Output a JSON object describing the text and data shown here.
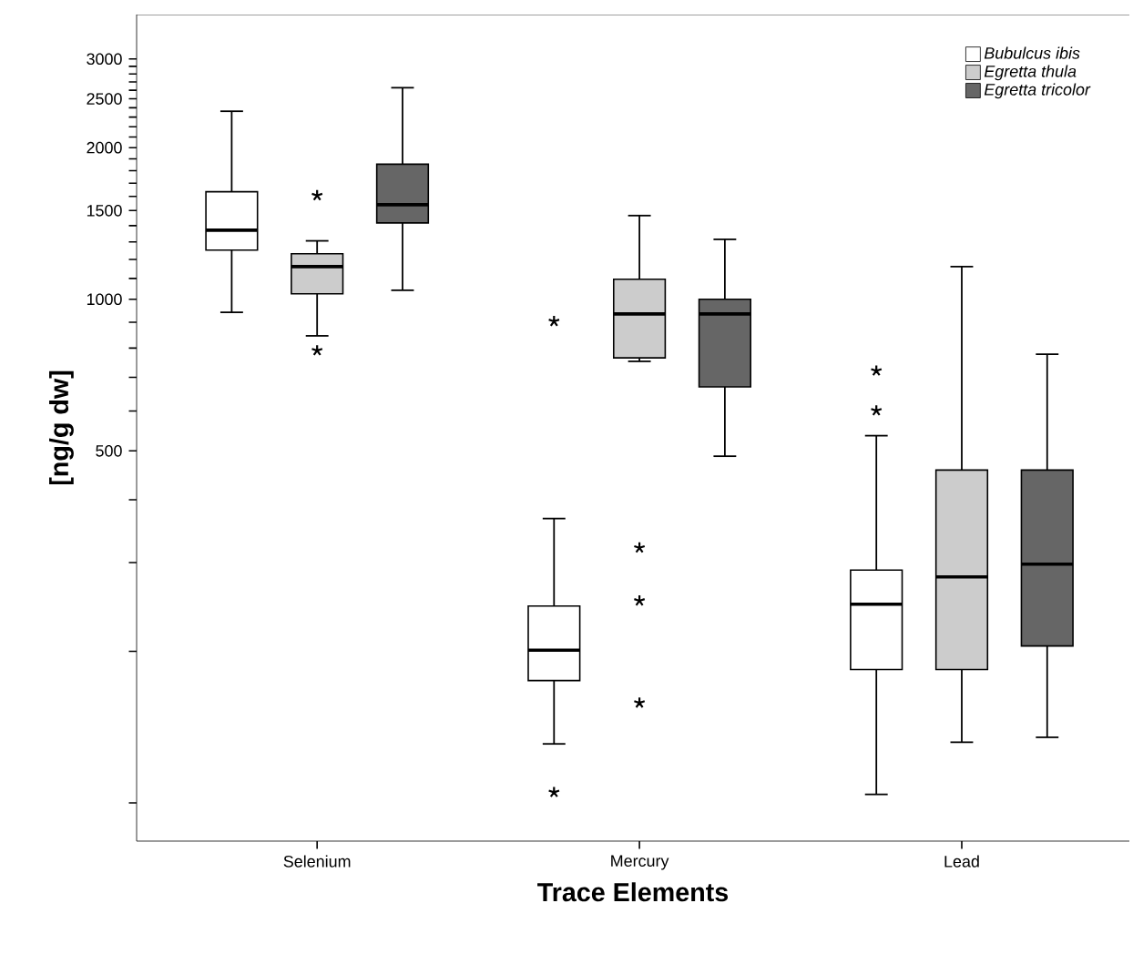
{
  "chart_data": {
    "type": "box",
    "xlabel": "Trace Elements",
    "ylabel": "[ng/g dw]",
    "categories": [
      "Selenium",
      "Mercury",
      "Lead"
    ],
    "log": "y",
    "ylim": [
      84,
      3675
    ],
    "yticks": [
      {
        "value": 100,
        "label": null
      },
      {
        "value": 200,
        "label": null
      },
      {
        "value": 300,
        "label": null
      },
      {
        "value": 400,
        "label": null
      },
      500,
      {
        "value": 600,
        "label": null
      },
      {
        "value": 700,
        "label": null
      },
      {
        "value": 800,
        "label": null
      },
      {
        "value": 900,
        "label": null
      },
      1000,
      {
        "value": 1100,
        "label": null
      },
      {
        "value": 1200,
        "label": null
      },
      {
        "value": 1300,
        "label": null
      },
      {
        "value": 1400,
        "label": null
      },
      1500,
      {
        "value": 1600,
        "label": null
      },
      {
        "value": 1700,
        "label": null
      },
      {
        "value": 1800,
        "label": null
      },
      {
        "value": 1900,
        "label": null
      },
      2000,
      {
        "value": 2100,
        "label": null
      },
      {
        "value": 2200,
        "label": null
      },
      {
        "value": 2300,
        "label": null
      },
      {
        "value": 2400,
        "label": null
      },
      2500,
      {
        "value": 2600,
        "label": null
      },
      {
        "value": 2700,
        "label": null
      },
      {
        "value": 2800,
        "label": null
      },
      {
        "value": 2900,
        "label": null
      },
      3000
    ],
    "legend": "top right",
    "marker": "star",
    "grid": false,
    "series": [
      {
        "name": "Bubulcus ibis",
        "color": "#ffffff",
        "boxes": [
          {
            "low": 942,
            "q1": 1252,
            "median": 1371,
            "q3": 1635,
            "high": 2362
          },
          {
            "low": 131,
            "q1": 175,
            "median": 201,
            "q3": 246,
            "high": 367,
            "outliers": [
              904,
              105
            ]
          },
          {
            "low": 104,
            "q1": 184,
            "median": 248,
            "q3": 290,
            "high": 536,
            "outliers": [
              721,
              601
            ]
          }
        ]
      },
      {
        "name": "Egretta thula",
        "color": "#cccccc",
        "boxes": [
          {
            "low": 846,
            "q1": 1025,
            "median": 1161,
            "q3": 1231,
            "high": 1306,
            "outliers": [
              1607,
              791
            ]
          },
          {
            "low": 753,
            "q1": 765,
            "median": 935,
            "q3": 1096,
            "high": 1466,
            "outliers": [
              321,
              252,
              158
            ]
          },
          {
            "low": 132,
            "q1": 184,
            "median": 281,
            "q3": 458,
            "high": 1161
          }
        ]
      },
      {
        "name": "Egretta tricolor",
        "color": "#666666",
        "boxes": [
          {
            "low": 1042,
            "q1": 1418,
            "median": 1541,
            "q3": 1854,
            "high": 2630
          },
          {
            "low": 488,
            "q1": 670,
            "median": 935,
            "q3": 1000,
            "high": 1315
          },
          {
            "low": 135,
            "q1": 205,
            "median": 298,
            "q3": 458,
            "high": 778
          }
        ]
      }
    ]
  }
}
